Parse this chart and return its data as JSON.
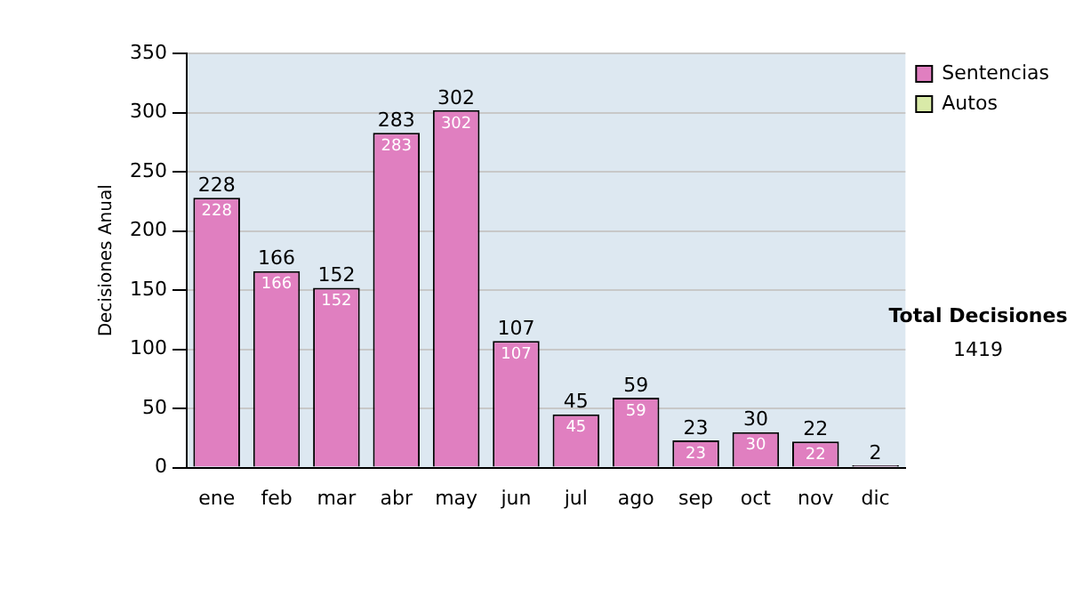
{
  "chart_data": {
    "type": "bar",
    "ylabel": "Decisiones Anual",
    "categories": [
      "ene",
      "feb",
      "mar",
      "abr",
      "may",
      "jun",
      "jul",
      "ago",
      "sep",
      "oct",
      "nov",
      "dic"
    ],
    "series": [
      {
        "name": "Sentencias",
        "color": "#e07fc0",
        "values": [
          228,
          166,
          152,
          283,
          302,
          107,
          45,
          59,
          23,
          30,
          22,
          2
        ],
        "value_labels": [
          "228",
          "166",
          "152",
          "283",
          "302",
          "107",
          "45",
          "59",
          "23",
          "30",
          "22",
          null
        ]
      },
      {
        "name": "Autos",
        "color": "#d9eaa8",
        "values": [
          null,
          null,
          null,
          null,
          null,
          null,
          null,
          null,
          null,
          null,
          null,
          null
        ]
      }
    ],
    "stacked": true,
    "totals": [
      "228",
      "166",
      "152",
      "283",
      "302",
      "107",
      "45",
      "59",
      "23",
      "30",
      "22",
      "2"
    ],
    "ylim": [
      0,
      350
    ],
    "yticks": [
      0,
      50,
      100,
      150,
      200,
      250,
      300,
      350
    ],
    "grid": "y",
    "legend": "right",
    "annotations": [
      "Total Decisiones",
      "1419"
    ]
  }
}
